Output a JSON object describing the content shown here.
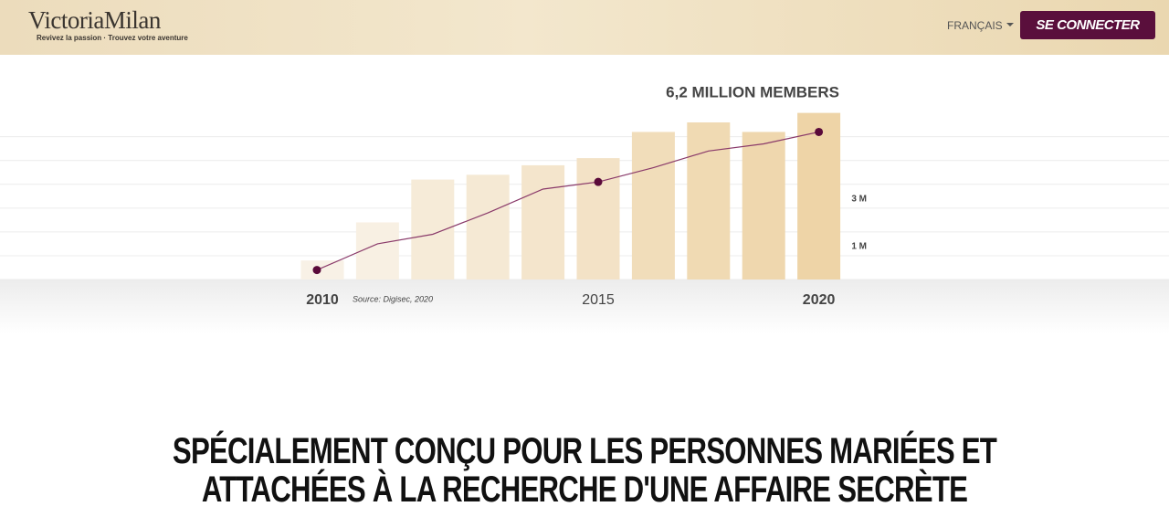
{
  "header": {
    "logo": "VictoriaMilan",
    "tagline": "Revivez la passion · Trouvez votre aventure",
    "language": "FRANÇAIS",
    "login": "SE CONNECTER"
  },
  "chart_data": {
    "type": "bar",
    "annotation": "6,2 MILLION MEMBERS",
    "source": "Source: Digisec, 2020",
    "categories": [
      "2010",
      null,
      null,
      null,
      null,
      "2015",
      null,
      null,
      null,
      "2020"
    ],
    "series": [
      {
        "type": "bar",
        "colors": [
          "#f8f1e6",
          "#f8f0e3",
          "#f6ebd8",
          "#f5e9d4",
          "#f4e5cc",
          "#f3e2c6",
          "#f1ddba",
          "#f0dab3",
          "#efd7ae",
          "#eed4a7"
        ],
        "values": [
          0.8,
          2.4,
          4.2,
          4.4,
          4.8,
          5.1,
          6.2,
          6.6,
          6.2,
          7.0
        ]
      },
      {
        "type": "line",
        "color": "#8a3a6a",
        "marker_color": "#5a0a3a",
        "markers": [
          0,
          5,
          9
        ],
        "values": [
          0.4,
          1.5,
          1.9,
          2.8,
          3.8,
          4.1,
          4.7,
          5.4,
          5.7,
          6.2
        ]
      }
    ],
    "ylim": [
      0,
      7.1
    ],
    "grid_lines": [
      0,
      1,
      2,
      3,
      4,
      5,
      6
    ],
    "yticks": [
      {
        "value": 1,
        "label": "1 M"
      },
      {
        "value": 3,
        "label": "3 M"
      }
    ]
  },
  "headline": {
    "lines": [
      "SPÉCIALEMENT CONÇU POUR LES PERSONNES MARIÉES ET",
      "ATTACHÉES À LA RECHERCHE D'UNE AFFAIRE SECRÈTE"
    ]
  }
}
